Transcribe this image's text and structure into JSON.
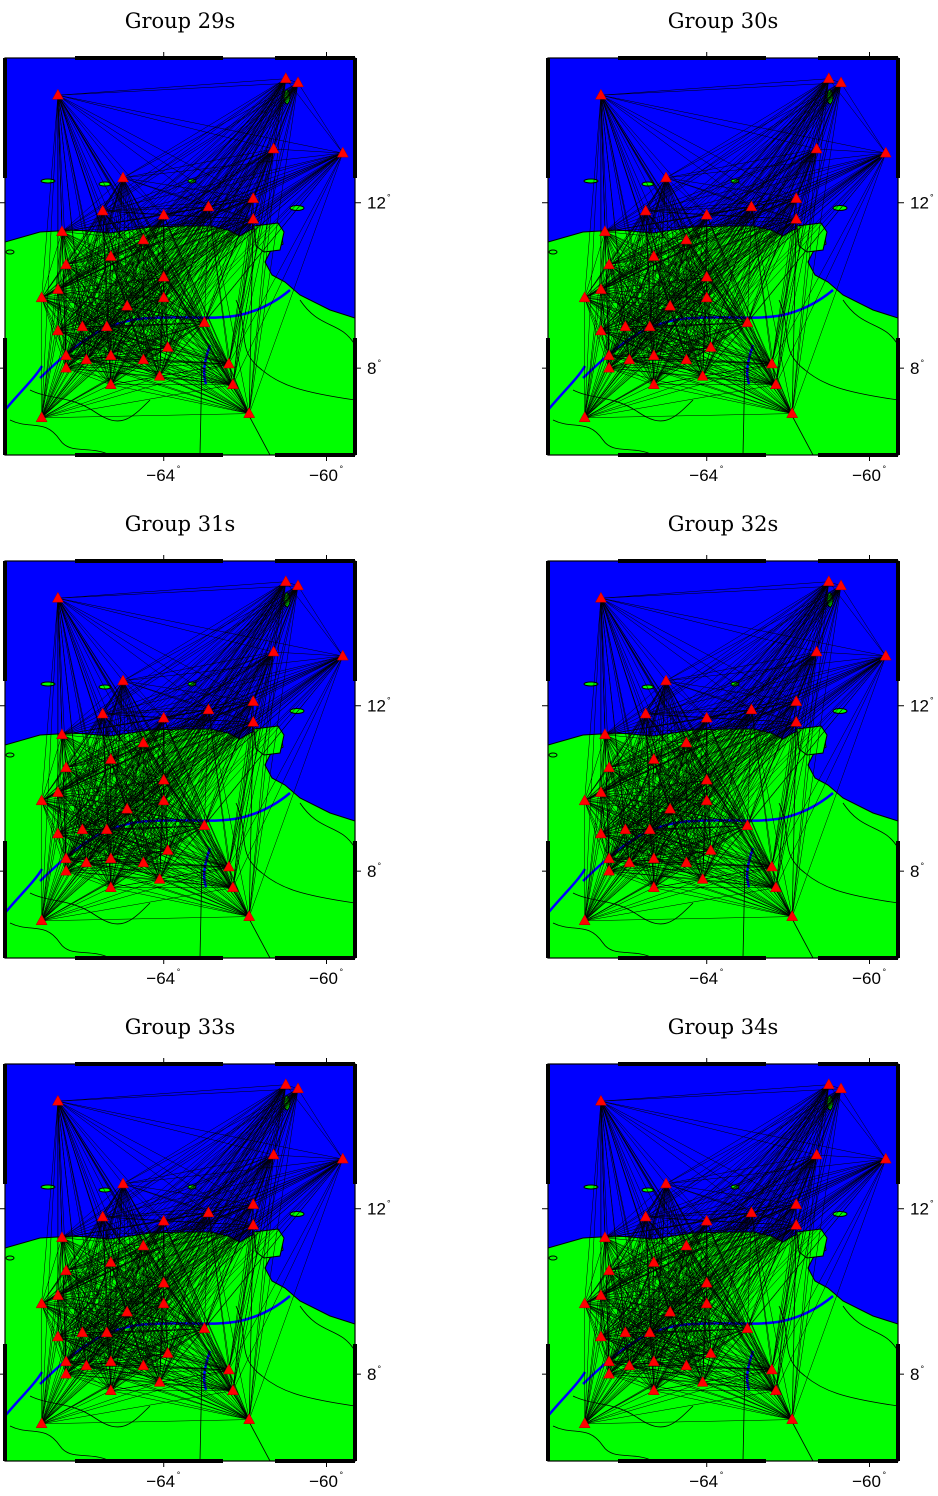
{
  "figure": {
    "panels": [
      {
        "title": "Group 29s"
      },
      {
        "title": "Group 30s"
      },
      {
        "title": "Group 31s"
      },
      {
        "title": "Group 32s"
      },
      {
        "title": "Group 33s"
      },
      {
        "title": "Group 34s"
      }
    ],
    "axes": {
      "x_ticks": [
        {
          "label": "−64",
          "value": -64
        },
        {
          "label": "−60",
          "value": -60
        }
      ],
      "y_ticks": [
        {
          "label": "12",
          "value": 12
        },
        {
          "label": "8",
          "value": 8
        }
      ],
      "degree_symbol": "°",
      "lon_range": [
        -67.9,
        -59.3
      ],
      "lat_range": [
        5.9,
        15.5
      ]
    },
    "colors": {
      "sea": "#0000ff",
      "land": "#00ff00",
      "station": "#ff0000",
      "path": "#000000"
    }
  },
  "stations": [
    {
      "lon": -66.6,
      "lat": 14.6
    },
    {
      "lon": -66.5,
      "lat": 11.3
    },
    {
      "lon": -66.4,
      "lat": 10.5
    },
    {
      "lon": -67.0,
      "lat": 9.7
    },
    {
      "lon": -66.6,
      "lat": 9.9
    },
    {
      "lon": -66.6,
      "lat": 8.9
    },
    {
      "lon": -66.4,
      "lat": 8.3
    },
    {
      "lon": -66.4,
      "lat": 8.0
    },
    {
      "lon": -67.0,
      "lat": 6.8
    },
    {
      "lon": -65.5,
      "lat": 11.8
    },
    {
      "lon": -65.0,
      "lat": 12.6
    },
    {
      "lon": -65.3,
      "lat": 10.7
    },
    {
      "lon": -64.5,
      "lat": 11.1
    },
    {
      "lon": -64.0,
      "lat": 11.7
    },
    {
      "lon": -62.9,
      "lat": 11.9
    },
    {
      "lon": -61.8,
      "lat": 12.1
    },
    {
      "lon": -61.8,
      "lat": 11.6
    },
    {
      "lon": -61.3,
      "lat": 13.3
    },
    {
      "lon": -61.0,
      "lat": 15.0
    },
    {
      "lon": -60.7,
      "lat": 14.9
    },
    {
      "lon": -59.6,
      "lat": 13.2
    },
    {
      "lon": -65.9,
      "lat": 8.2
    },
    {
      "lon": -66.0,
      "lat": 9.0
    },
    {
      "lon": -65.4,
      "lat": 9.0
    },
    {
      "lon": -64.9,
      "lat": 9.5
    },
    {
      "lon": -65.3,
      "lat": 8.3
    },
    {
      "lon": -64.5,
      "lat": 8.2
    },
    {
      "lon": -64.0,
      "lat": 9.7
    },
    {
      "lon": -64.0,
      "lat": 10.2
    },
    {
      "lon": -63.9,
      "lat": 8.5
    },
    {
      "lon": -63.0,
      "lat": 9.1
    },
    {
      "lon": -62.4,
      "lat": 8.1
    },
    {
      "lon": -62.3,
      "lat": 7.6
    },
    {
      "lon": -64.1,
      "lat": 7.8
    },
    {
      "lon": -65.3,
      "lat": 7.6
    },
    {
      "lon": -61.9,
      "lat": 6.9
    }
  ]
}
